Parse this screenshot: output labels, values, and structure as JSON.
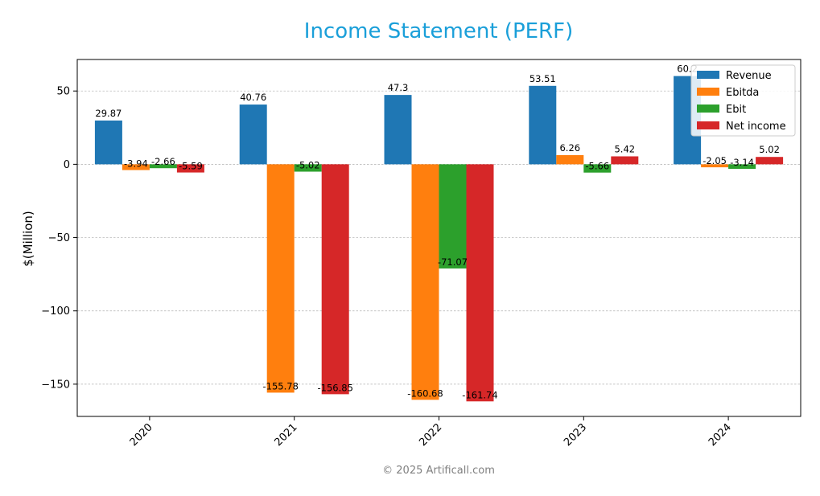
{
  "chart_data": {
    "type": "bar",
    "title": "Income Statement (PERF)",
    "ylabel": "$(Million)",
    "xlabel": "",
    "categories": [
      "2020",
      "2021",
      "2022",
      "2023",
      "2024"
    ],
    "series": [
      {
        "name": "Revenue",
        "color": "#1f77b4",
        "values": [
          29.87,
          40.76,
          47.3,
          53.51,
          60.2
        ]
      },
      {
        "name": "Ebitda",
        "color": "#ff7f0e",
        "values": [
          -3.94,
          -155.78,
          -160.68,
          6.26,
          -2.05
        ]
      },
      {
        "name": "Ebit",
        "color": "#2ca02c",
        "values": [
          -2.66,
          -5.02,
          -71.07,
          -5.66,
          -3.14
        ]
      },
      {
        "name": "Net income",
        "color": "#d62728",
        "values": [
          -5.59,
          -156.85,
          -161.74,
          5.42,
          5.02
        ]
      }
    ],
    "ylim": [
      -172,
      71.5
    ],
    "yticks": [
      -150,
      -100,
      -50,
      0,
      50
    ],
    "grid": true,
    "legend_position": "top-right",
    "title_color": "#1a9fd9"
  },
  "footer": {
    "text": "© 2025 Artificall.com"
  }
}
